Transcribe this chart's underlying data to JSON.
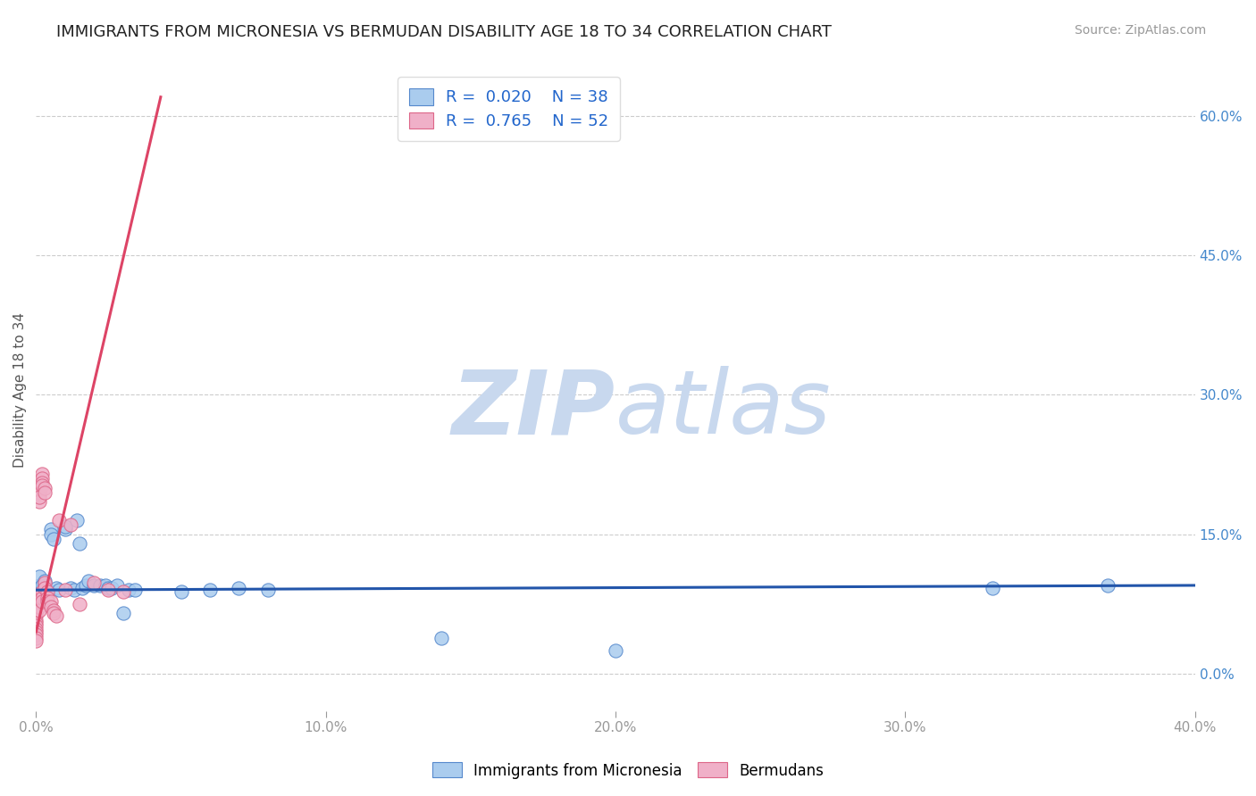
{
  "title": "IMMIGRANTS FROM MICRONESIA VS BERMUDAN DISABILITY AGE 18 TO 34 CORRELATION CHART",
  "source_text": "Source: ZipAtlas.com",
  "ylabel": "Disability Age 18 to 34",
  "xlim": [
    0.0,
    0.4
  ],
  "ylim": [
    -0.04,
    0.65
  ],
  "xticks": [
    0.0,
    0.1,
    0.2,
    0.3,
    0.4
  ],
  "xticklabels": [
    "0.0%",
    "10.0%",
    "20.0%",
    "30.0%",
    "40.0%"
  ],
  "yticks": [
    0.0,
    0.15,
    0.3,
    0.45,
    0.6
  ],
  "yticklabels": [
    "0.0%",
    "15.0%",
    "30.0%",
    "45.0%",
    "60.0%"
  ],
  "grid_color": "#cccccc",
  "background_color": "#ffffff",
  "watermark_zip": "ZIP",
  "watermark_atlas": "atlas",
  "watermark_zip_color": "#c8d8ee",
  "watermark_atlas_color": "#c8d8ee",
  "series": [
    {
      "name": "Immigrants from Micronesia",
      "R": "0.020",
      "N": "38",
      "color": "#aaccee",
      "edge_color": "#5588cc",
      "line_color": "#2255aa",
      "scatter_x": [
        0.001,
        0.001,
        0.002,
        0.002,
        0.003,
        0.003,
        0.004,
        0.005,
        0.005,
        0.006,
        0.007,
        0.008,
        0.01,
        0.01,
        0.012,
        0.013,
        0.014,
        0.015,
        0.016,
        0.017,
        0.018,
        0.02,
        0.022,
        0.024,
        0.025,
        0.026,
        0.028,
        0.03,
        0.032,
        0.034,
        0.05,
        0.06,
        0.07,
        0.08,
        0.14,
        0.2,
        0.33,
        0.37
      ],
      "scatter_y": [
        0.095,
        0.105,
        0.09,
        0.095,
        0.095,
        0.1,
        0.09,
        0.155,
        0.15,
        0.145,
        0.092,
        0.09,
        0.155,
        0.158,
        0.092,
        0.09,
        0.165,
        0.14,
        0.092,
        0.095,
        0.1,
        0.095,
        0.095,
        0.095,
        0.092,
        0.092,
        0.095,
        0.065,
        0.09,
        0.09,
        0.088,
        0.09,
        0.092,
        0.09,
        0.038,
        0.025,
        0.092,
        0.095
      ],
      "trend_x": [
        0.0,
        0.4
      ],
      "trend_y": [
        0.09,
        0.095
      ]
    },
    {
      "name": "Bermudans",
      "R": "0.765",
      "N": "52",
      "color": "#f0b0c8",
      "edge_color": "#dd6688",
      "line_color": "#dd4466",
      "scatter_x": [
        0.0,
        0.0,
        0.0,
        0.0,
        0.0,
        0.0,
        0.0,
        0.0,
        0.0,
        0.0,
        0.0,
        0.0,
        0.0,
        0.0,
        0.0,
        0.001,
        0.001,
        0.001,
        0.001,
        0.001,
        0.001,
        0.001,
        0.001,
        0.001,
        0.001,
        0.001,
        0.002,
        0.002,
        0.002,
        0.002,
        0.002,
        0.002,
        0.002,
        0.003,
        0.003,
        0.003,
        0.003,
        0.004,
        0.004,
        0.004,
        0.005,
        0.005,
        0.006,
        0.006,
        0.007,
        0.008,
        0.01,
        0.012,
        0.015,
        0.02,
        0.025,
        0.03
      ],
      "scatter_y": [
        0.082,
        0.078,
        0.074,
        0.072,
        0.068,
        0.065,
        0.062,
        0.058,
        0.055,
        0.052,
        0.048,
        0.045,
        0.042,
        0.038,
        0.035,
        0.2,
        0.195,
        0.205,
        0.198,
        0.185,
        0.19,
        0.085,
        0.082,
        0.078,
        0.072,
        0.068,
        0.215,
        0.21,
        0.205,
        0.202,
        0.088,
        0.082,
        0.078,
        0.2,
        0.195,
        0.098,
        0.092,
        0.088,
        0.082,
        0.078,
        0.078,
        0.072,
        0.068,
        0.065,
        0.062,
        0.165,
        0.09,
        0.16,
        0.075,
        0.098,
        0.09,
        0.088
      ],
      "trend_x": [
        0.0,
        0.043
      ],
      "trend_y": [
        0.045,
        0.62
      ]
    }
  ],
  "legend": {
    "blue_R": "0.020",
    "blue_N": "38",
    "pink_R": "0.765",
    "pink_N": "52"
  },
  "title_fontsize": 13,
  "axis_label_fontsize": 11,
  "tick_fontsize": 11,
  "legend_fontsize": 13,
  "source_fontsize": 10,
  "legend_text_color": "#2266cc",
  "ylabel_color": "#555555",
  "tick_color": "#999999",
  "right_tick_color": "#4488cc"
}
